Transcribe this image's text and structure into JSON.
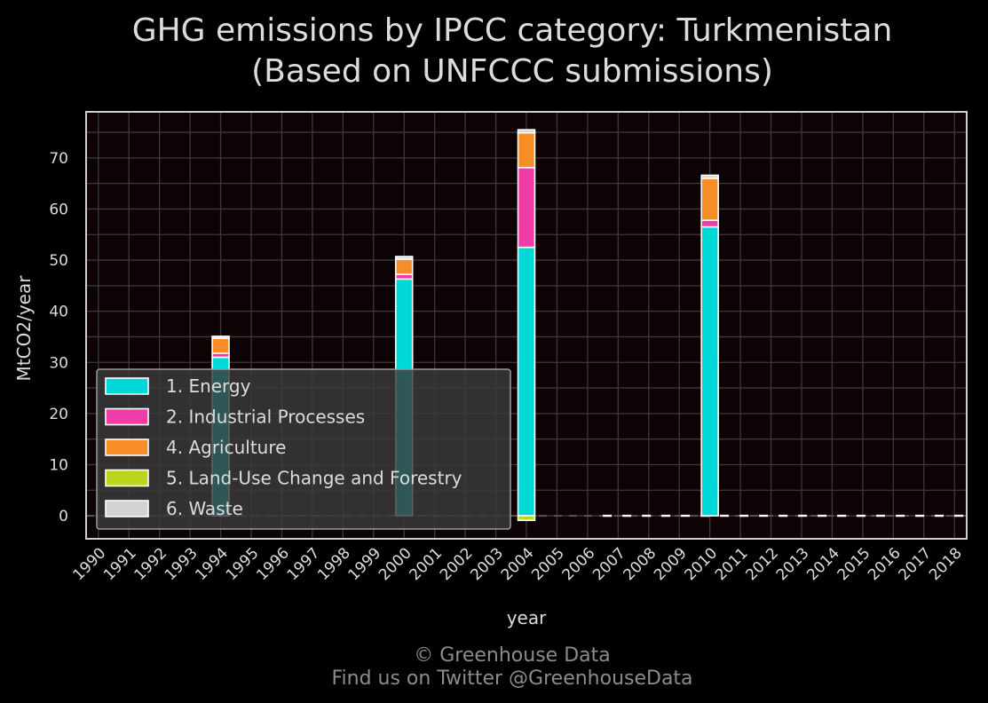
{
  "chart_data": {
    "type": "bar",
    "stacked": true,
    "title": "GHG emissions by IPCC category: Turkmenistan",
    "subtitle": "(Based on UNFCCC submissions)",
    "xlabel": "year",
    "ylabel": "MtCO2/year",
    "x": [
      1990,
      1991,
      1992,
      1993,
      1994,
      1995,
      1996,
      1997,
      1998,
      1999,
      2000,
      2001,
      2002,
      2003,
      2004,
      2005,
      2006,
      2007,
      2008,
      2009,
      2010,
      2011,
      2012,
      2013,
      2014,
      2015,
      2016,
      2017,
      2018
    ],
    "xlim": [
      1989.6,
      2018.4
    ],
    "ylim": [
      -4.5,
      79
    ],
    "yticks": [
      0,
      10,
      20,
      30,
      40,
      50,
      60,
      70
    ],
    "grid": true,
    "legend_position": "lower-left",
    "series": [
      {
        "name": "1. Energy",
        "color": "#00d8d8",
        "points": [
          {
            "x": 1994,
            "y": 31.0
          },
          {
            "x": 2000,
            "y": 46.3
          },
          {
            "x": 2004,
            "y": 52.5
          },
          {
            "x": 2010,
            "y": 56.5
          }
        ]
      },
      {
        "name": "2. Industrial Processes",
        "color": "#f03ca6",
        "points": [
          {
            "x": 1994,
            "y": 0.8
          },
          {
            "x": 2000,
            "y": 0.9
          },
          {
            "x": 2004,
            "y": 15.6
          },
          {
            "x": 2010,
            "y": 1.3
          }
        ]
      },
      {
        "name": "4. Agriculture",
        "color": "#f68d27",
        "points": [
          {
            "x": 1994,
            "y": 2.9
          },
          {
            "x": 2000,
            "y": 3.0
          },
          {
            "x": 2004,
            "y": 6.8
          },
          {
            "x": 2010,
            "y": 8.2
          }
        ]
      },
      {
        "name": "5. Land-Use Change and Forestry",
        "color": "#bcd61e",
        "points": [
          {
            "x": 1994,
            "y": 0.0
          },
          {
            "x": 2000,
            "y": 0.0
          },
          {
            "x": 2004,
            "y": -0.9
          },
          {
            "x": 2010,
            "y": 0.0
          }
        ]
      },
      {
        "name": "6. Waste",
        "color": "#d3d3d3",
        "points": [
          {
            "x": 1994,
            "y": 0.4
          },
          {
            "x": 2000,
            "y": 0.5
          },
          {
            "x": 2004,
            "y": 0.6
          },
          {
            "x": 2010,
            "y": 0.6
          }
        ]
      }
    ]
  },
  "footer": {
    "copyright": "© Greenhouse Data",
    "twitter": "Find us on Twitter @GreenhouseData"
  },
  "colors": {
    "background": "#000000",
    "plot_background": "#0e0304",
    "grid": "#3a3a3a",
    "frame": "#d0d0d0",
    "legend_background": "#3a3a3a"
  }
}
